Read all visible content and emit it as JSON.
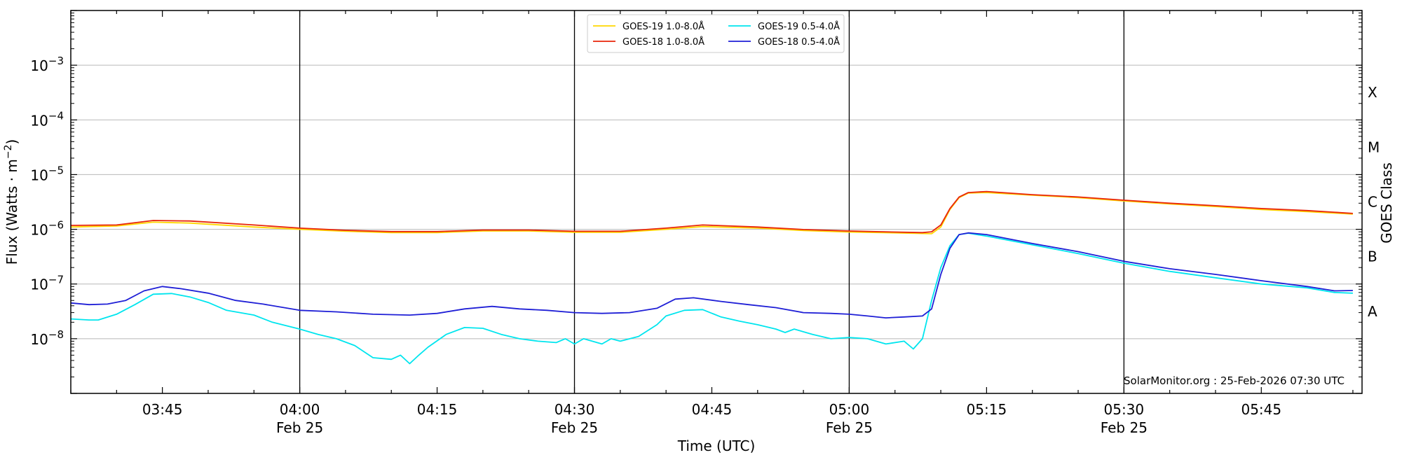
{
  "chart_data": {
    "type": "line",
    "xlabel": "Time (UTC)",
    "ylabel_main": "Flux (Watts · m",
    "ylabel_sup": "−2",
    "ylabel_close": ")",
    "right_axis_label": "GOES Class",
    "credit": "SolarMonitor.org : 25-Feb-2026 07:30 UTC",
    "y_scale": "log",
    "ylim": [
      1e-09,
      0.01
    ],
    "xlim": [
      "03:35",
      "05:56"
    ],
    "x_ticks": [
      {
        "t": "03:45",
        "line1": "03:45",
        "line2": ""
      },
      {
        "t": "04:00",
        "line1": "04:00",
        "line2": "Feb 25"
      },
      {
        "t": "04:15",
        "line1": "04:15",
        "line2": ""
      },
      {
        "t": "04:30",
        "line1": "04:30",
        "line2": "Feb 25"
      },
      {
        "t": "04:45",
        "line1": "04:45",
        "line2": ""
      },
      {
        "t": "05:00",
        "line1": "05:00",
        "line2": "Feb 25"
      },
      {
        "t": "05:15",
        "line1": "05:15",
        "line2": ""
      },
      {
        "t": "05:30",
        "line1": "05:30",
        "line2": "Feb 25"
      },
      {
        "t": "05:45",
        "line1": "05:45",
        "line2": ""
      }
    ],
    "vertical_lines": [
      "04:00",
      "04:30",
      "05:00",
      "05:30"
    ],
    "y_ticks": [
      {
        "exp": -8,
        "label_base": "10",
        "label_exp": "−8"
      },
      {
        "exp": -7,
        "label_base": "10",
        "label_exp": "−7"
      },
      {
        "exp": -6,
        "label_base": "10",
        "label_exp": "−6"
      },
      {
        "exp": -5,
        "label_base": "10",
        "label_exp": "−5"
      },
      {
        "exp": -4,
        "label_base": "10",
        "label_exp": "−4"
      },
      {
        "exp": -3,
        "label_base": "10",
        "label_exp": "−3"
      }
    ],
    "goes_classes": [
      {
        "label": "A",
        "exp": -7.5
      },
      {
        "label": "B",
        "exp": -6.5
      },
      {
        "label": "C",
        "exp": -5.5
      },
      {
        "label": "M",
        "exp": -4.5
      },
      {
        "label": "X",
        "exp": -3.5
      }
    ],
    "legend": {
      "placement": "top-center",
      "columns": 2
    },
    "series": [
      {
        "name": "GOES-19 1.0-8.0Å",
        "color": "#ffd700",
        "points": [
          [
            "03:35",
            1.1e-06
          ],
          [
            "03:40",
            1.15e-06
          ],
          [
            "03:44",
            1.35e-06
          ],
          [
            "03:48",
            1.3e-06
          ],
          [
            "03:55",
            1.1e-06
          ],
          [
            "04:00",
            1e-06
          ],
          [
            "04:05",
            9.2e-07
          ],
          [
            "04:10",
            8.7e-07
          ],
          [
            "04:15",
            8.7e-07
          ],
          [
            "04:20",
            9.3e-07
          ],
          [
            "04:25",
            9.3e-07
          ],
          [
            "04:30",
            8.8e-07
          ],
          [
            "04:35",
            8.8e-07
          ],
          [
            "04:40",
            1e-06
          ],
          [
            "04:44",
            1.12e-06
          ],
          [
            "04:50",
            1.05e-06
          ],
          [
            "04:55",
            9.5e-07
          ],
          [
            "05:00",
            8.9e-07
          ],
          [
            "05:05",
            8.6e-07
          ],
          [
            "05:09",
            8.3e-07
          ],
          [
            "05:10",
            1.1e-06
          ],
          [
            "05:11",
            2.3e-06
          ],
          [
            "05:12",
            3.8e-06
          ],
          [
            "05:13",
            4.6e-06
          ],
          [
            "05:15",
            4.7e-06
          ],
          [
            "05:20",
            4.2e-06
          ],
          [
            "05:25",
            3.8e-06
          ],
          [
            "05:30",
            3.3e-06
          ],
          [
            "05:35",
            2.9e-06
          ],
          [
            "05:40",
            2.6e-06
          ],
          [
            "05:45",
            2.3e-06
          ],
          [
            "05:50",
            2.1e-06
          ],
          [
            "05:55",
            1.9e-06
          ]
        ]
      },
      {
        "name": "GOES-18 1.0-8.0Å",
        "color": "#e8250a",
        "points": [
          [
            "03:35",
            1.18e-06
          ],
          [
            "03:40",
            1.2e-06
          ],
          [
            "03:44",
            1.45e-06
          ],
          [
            "03:48",
            1.42e-06
          ],
          [
            "03:55",
            1.2e-06
          ],
          [
            "04:00",
            1.05e-06
          ],
          [
            "04:05",
            9.6e-07
          ],
          [
            "04:10",
            9.1e-07
          ],
          [
            "04:15",
            9.1e-07
          ],
          [
            "04:20",
            9.7e-07
          ],
          [
            "04:25",
            9.7e-07
          ],
          [
            "04:30",
            9.2e-07
          ],
          [
            "04:35",
            9.2e-07
          ],
          [
            "04:40",
            1.05e-06
          ],
          [
            "04:44",
            1.2e-06
          ],
          [
            "04:50",
            1.1e-06
          ],
          [
            "04:55",
            9.9e-07
          ],
          [
            "05:00",
            9.3e-07
          ],
          [
            "05:05",
            8.9e-07
          ],
          [
            "05:08",
            8.7e-07
          ],
          [
            "05:09",
            9e-07
          ],
          [
            "05:10",
            1.2e-06
          ],
          [
            "05:11",
            2.4e-06
          ],
          [
            "05:12",
            3.9e-06
          ],
          [
            "05:13",
            4.7e-06
          ],
          [
            "05:15",
            4.9e-06
          ],
          [
            "05:20",
            4.3e-06
          ],
          [
            "05:25",
            3.9e-06
          ],
          [
            "05:30",
            3.4e-06
          ],
          [
            "05:35",
            3e-06
          ],
          [
            "05:40",
            2.7e-06
          ],
          [
            "05:45",
            2.4e-06
          ],
          [
            "05:50",
            2.2e-06
          ],
          [
            "05:55",
            1.95e-06
          ]
        ]
      },
      {
        "name": "GOES-19 0.5-4.0Å",
        "color": "#00e5ee",
        "points": [
          [
            "03:35",
            2.3e-08
          ],
          [
            "03:37",
            2.2e-08
          ],
          [
            "03:38",
            2.2e-08
          ],
          [
            "03:40",
            2.8e-08
          ],
          [
            "03:42",
            4.2e-08
          ],
          [
            "03:44",
            6.5e-08
          ],
          [
            "03:46",
            6.7e-08
          ],
          [
            "03:48",
            5.8e-08
          ],
          [
            "03:50",
            4.6e-08
          ],
          [
            "03:52",
            3.3e-08
          ],
          [
            "03:55",
            2.7e-08
          ],
          [
            "03:57",
            2e-08
          ],
          [
            "04:00",
            1.5e-08
          ],
          [
            "04:02",
            1.2e-08
          ],
          [
            "04:04",
            1e-08
          ],
          [
            "04:06",
            7.5e-09
          ],
          [
            "04:08",
            4.5e-09
          ],
          [
            "04:10",
            4.2e-09
          ],
          [
            "04:11",
            5e-09
          ],
          [
            "04:12",
            3.5e-09
          ],
          [
            "04:13",
            5e-09
          ],
          [
            "04:14",
            7e-09
          ],
          [
            "04:16",
            1.2e-08
          ],
          [
            "04:18",
            1.6e-08
          ],
          [
            "04:20",
            1.55e-08
          ],
          [
            "04:22",
            1.2e-08
          ],
          [
            "04:24",
            1e-08
          ],
          [
            "04:26",
            9e-09
          ],
          [
            "04:28",
            8.5e-09
          ],
          [
            "04:29",
            1e-08
          ],
          [
            "04:30",
            8e-09
          ],
          [
            "04:31",
            1e-08
          ],
          [
            "04:33",
            8e-09
          ],
          [
            "04:34",
            1e-08
          ],
          [
            "04:35",
            9e-09
          ],
          [
            "04:37",
            1.1e-08
          ],
          [
            "04:39",
            1.8e-08
          ],
          [
            "04:40",
            2.6e-08
          ],
          [
            "04:42",
            3.3e-08
          ],
          [
            "04:44",
            3.4e-08
          ],
          [
            "04:46",
            2.5e-08
          ],
          [
            "04:48",
            2.1e-08
          ],
          [
            "04:50",
            1.8e-08
          ],
          [
            "04:52",
            1.5e-08
          ],
          [
            "04:53",
            1.3e-08
          ],
          [
            "04:54",
            1.5e-08
          ],
          [
            "04:56",
            1.2e-08
          ],
          [
            "04:58",
            1e-08
          ],
          [
            "05:00",
            1.05e-08
          ],
          [
            "05:02",
            1e-08
          ],
          [
            "05:04",
            8e-09
          ],
          [
            "05:06",
            9e-09
          ],
          [
            "05:07",
            6.5e-09
          ],
          [
            "05:08",
            1e-08
          ],
          [
            "05:09",
            5e-08
          ],
          [
            "05:10",
            2e-07
          ],
          [
            "05:11",
            5e-07
          ],
          [
            "05:12",
            8e-07
          ],
          [
            "05:13",
            8.5e-07
          ],
          [
            "05:15",
            7.5e-07
          ],
          [
            "05:20",
            5.2e-07
          ],
          [
            "05:25",
            3.6e-07
          ],
          [
            "05:30",
            2.4e-07
          ],
          [
            "05:35",
            1.7e-07
          ],
          [
            "05:40",
            1.3e-07
          ],
          [
            "05:45",
            1e-07
          ],
          [
            "05:50",
            8.5e-08
          ],
          [
            "05:53",
            7e-08
          ],
          [
            "05:55",
            6.8e-08
          ]
        ]
      },
      {
        "name": "GOES-18 0.5-4.0Å",
        "color": "#1f1fd6",
        "points": [
          [
            "03:35",
            4.5e-08
          ],
          [
            "03:37",
            4.2e-08
          ],
          [
            "03:39",
            4.3e-08
          ],
          [
            "03:41",
            5e-08
          ],
          [
            "03:43",
            7.5e-08
          ],
          [
            "03:45",
            9e-08
          ],
          [
            "03:47",
            8.2e-08
          ],
          [
            "03:50",
            6.8e-08
          ],
          [
            "03:53",
            5e-08
          ],
          [
            "03:56",
            4.3e-08
          ],
          [
            "04:00",
            3.3e-08
          ],
          [
            "04:04",
            3.1e-08
          ],
          [
            "04:08",
            2.8e-08
          ],
          [
            "04:12",
            2.7e-08
          ],
          [
            "04:15",
            2.9e-08
          ],
          [
            "04:18",
            3.5e-08
          ],
          [
            "04:21",
            3.9e-08
          ],
          [
            "04:24",
            3.5e-08
          ],
          [
            "04:27",
            3.3e-08
          ],
          [
            "04:30",
            3e-08
          ],
          [
            "04:33",
            2.9e-08
          ],
          [
            "04:36",
            3e-08
          ],
          [
            "04:39",
            3.6e-08
          ],
          [
            "04:41",
            5.3e-08
          ],
          [
            "04:43",
            5.6e-08
          ],
          [
            "04:46",
            4.8e-08
          ],
          [
            "04:49",
            4.2e-08
          ],
          [
            "04:52",
            3.7e-08
          ],
          [
            "04:55",
            3e-08
          ],
          [
            "04:58",
            2.9e-08
          ],
          [
            "05:00",
            2.8e-08
          ],
          [
            "05:02",
            2.6e-08
          ],
          [
            "05:04",
            2.4e-08
          ],
          [
            "05:06",
            2.5e-08
          ],
          [
            "05:08",
            2.6e-08
          ],
          [
            "05:09",
            3.5e-08
          ],
          [
            "05:10",
            1.5e-07
          ],
          [
            "05:11",
            4.5e-07
          ],
          [
            "05:12",
            8e-07
          ],
          [
            "05:13",
            8.6e-07
          ],
          [
            "05:15",
            8e-07
          ],
          [
            "05:20",
            5.5e-07
          ],
          [
            "05:25",
            3.9e-07
          ],
          [
            "05:30",
            2.6e-07
          ],
          [
            "05:35",
            1.9e-07
          ],
          [
            "05:40",
            1.5e-07
          ],
          [
            "05:45",
            1.15e-07
          ],
          [
            "05:50",
            9e-08
          ],
          [
            "05:53",
            7.5e-08
          ],
          [
            "05:55",
            7.6e-08
          ]
        ]
      }
    ]
  }
}
